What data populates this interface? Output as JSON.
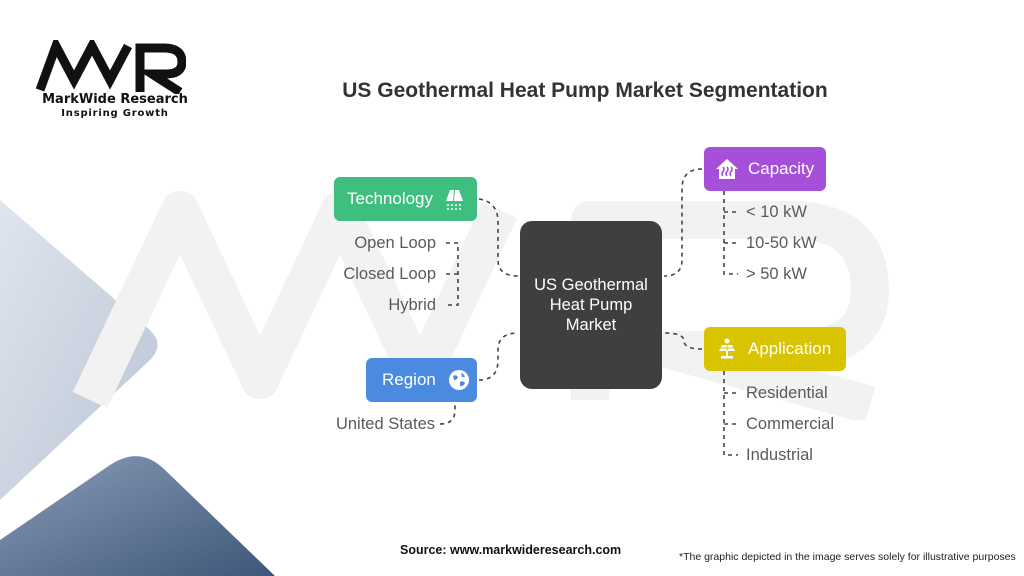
{
  "brand": {
    "logo_text": "MWR",
    "name": "MarkWide Research",
    "tagline": "Inspiring Growth"
  },
  "title": "US Geothermal Heat Pump Market Segmentation",
  "center": {
    "label": "US Geothermal Heat Pump Market",
    "color": "#3f3f3f"
  },
  "segments": {
    "technology": {
      "label": "Technology",
      "icon": "cooling-unit-icon",
      "color": "#3fbf7f",
      "items": [
        "Open Loop",
        "Closed Loop",
        "Hybrid"
      ]
    },
    "region": {
      "label": "Region",
      "icon": "globe-icon",
      "color": "#4a8be0",
      "items": [
        "United States"
      ]
    },
    "capacity": {
      "label": "Capacity",
      "icon": "heating-house-icon",
      "color": "#a64fd8",
      "items": [
        "< 10 kW",
        "10-50 kW",
        "> 50 kW"
      ]
    },
    "application": {
      "label": "Application",
      "icon": "solar-panel-icon",
      "color": "#d8c400",
      "items": [
        "Residential",
        "Commercial",
        "Industrial"
      ]
    }
  },
  "footer": {
    "source": "Source: www.markwideresearch.com",
    "disclaimer": "*The graphic depicted in the image serves solely for illustrative purposes"
  }
}
